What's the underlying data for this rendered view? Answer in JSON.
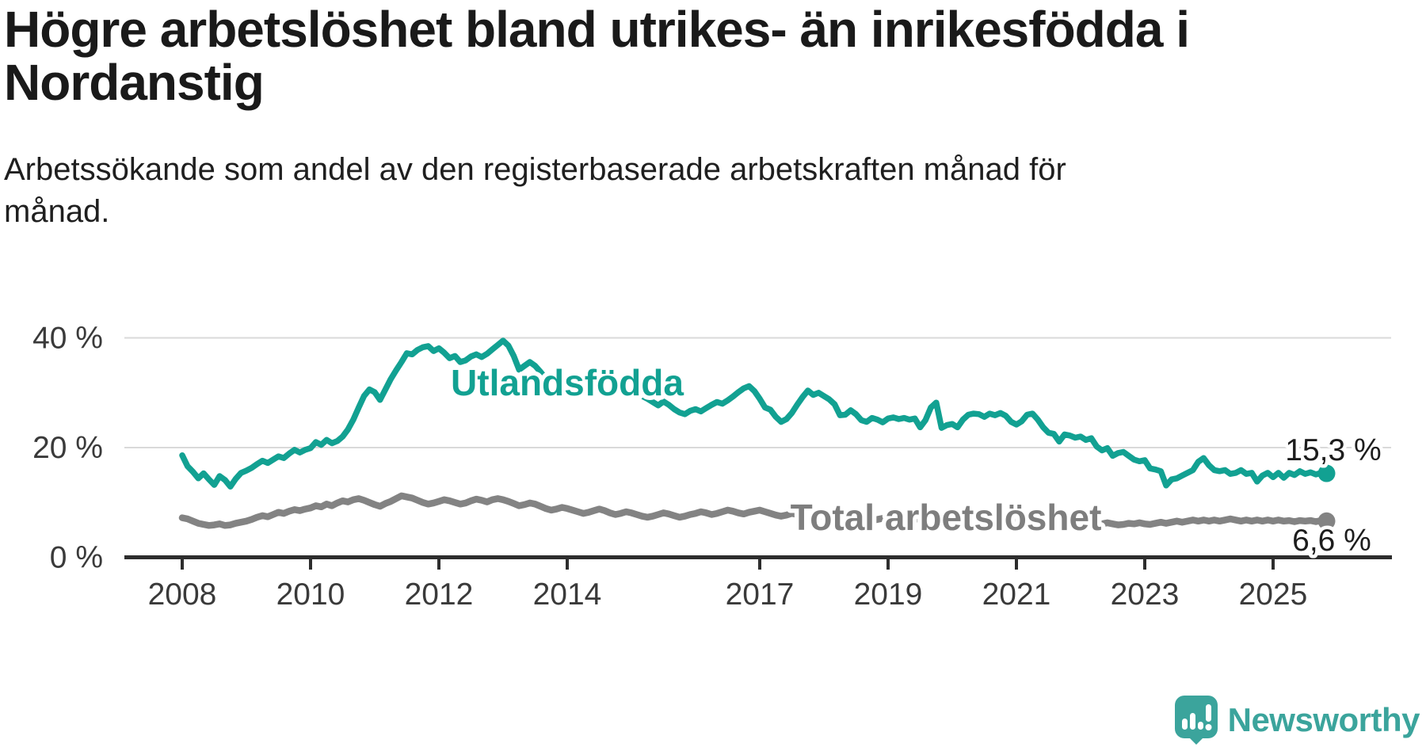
{
  "branding": {
    "name": "Newsworthy"
  },
  "chart_data": {
    "type": "line",
    "title": "Högre arbetslöshet bland utrikes- än inrikesfödda i Nordanstig",
    "subtitle": "Arbetssökande som andel av den registerbaserade arbetskraften månad för månad.",
    "x_unit": "month",
    "x_start": "2008-01",
    "x_end": "2025-11",
    "ylim": [
      0,
      43
    ],
    "grid": "horizontal-only",
    "legend_position": "inline-labels",
    "y_ticks": [
      {
        "label": "0 %",
        "value": 0
      },
      {
        "label": "20 %",
        "value": 20
      },
      {
        "label": "40 %",
        "value": 40
      }
    ],
    "x_ticks": [
      {
        "label": "2008",
        "year": 2008
      },
      {
        "label": "2010",
        "year": 2010
      },
      {
        "label": "2012",
        "year": 2012
      },
      {
        "label": "2014",
        "year": 2014
      },
      {
        "label": "2017",
        "year": 2017
      },
      {
        "label": "2019",
        "year": 2019
      },
      {
        "label": "2021",
        "year": 2021
      },
      {
        "label": "2023",
        "year": 2023
      },
      {
        "label": "2025",
        "year": 2025
      }
    ],
    "series": [
      {
        "name": "Utlandsfödda",
        "color": "#12a192",
        "line_width": 7.5,
        "end_value": 15.3,
        "end_label": "15,3 %",
        "values": [
          18.6,
          16.6,
          15.6,
          14.4,
          15.3,
          14.2,
          13.2,
          14.8,
          14.1,
          12.9,
          14.3,
          15.4,
          15.8,
          16.3,
          17.0,
          17.6,
          17.2,
          17.8,
          18.4,
          18.1,
          18.9,
          19.6,
          19.1,
          19.6,
          19.9,
          21.0,
          20.5,
          21.4,
          20.8,
          21.2,
          22.0,
          23.3,
          25.1,
          27.3,
          29.4,
          30.6,
          30.1,
          28.7,
          30.6,
          32.5,
          34.1,
          35.6,
          37.2,
          37.0,
          37.8,
          38.3,
          38.5,
          37.6,
          38.1,
          37.3,
          36.3,
          36.7,
          35.6,
          35.9,
          36.6,
          37.0,
          36.5,
          37.1,
          37.9,
          38.7,
          39.5,
          38.6,
          36.7,
          34.2,
          34.9,
          35.6,
          34.9,
          33.8,
          32.6,
          31.8,
          31.2,
          30.8,
          30.4,
          30.0,
          29.8,
          30.2,
          30.6,
          30.9,
          30.5,
          30.1,
          29.8,
          30.0,
          30.4,
          30.7,
          30.3,
          29.8,
          29.4,
          28.9,
          28.3,
          27.7,
          28.4,
          27.8,
          27.0,
          26.4,
          26.1,
          26.7,
          27.0,
          26.6,
          27.2,
          27.8,
          28.3,
          28.0,
          28.6,
          29.3,
          30.1,
          30.8,
          31.2,
          30.3,
          28.9,
          27.3,
          26.9,
          25.6,
          24.7,
          25.2,
          26.3,
          27.8,
          29.2,
          30.4,
          29.6,
          30.0,
          29.4,
          28.8,
          27.9,
          25.9,
          26.0,
          26.8,
          26.1,
          25.0,
          24.7,
          25.4,
          25.1,
          24.6,
          25.3,
          25.5,
          25.2,
          25.4,
          25.1,
          25.3,
          23.7,
          25.0,
          27.3,
          28.2,
          23.6,
          24.1,
          24.3,
          23.7,
          25.1,
          26.0,
          26.2,
          26.1,
          25.6,
          26.2,
          25.9,
          26.3,
          25.8,
          24.7,
          24.2,
          24.8,
          26.0,
          26.2,
          25.1,
          23.7,
          22.7,
          22.5,
          21.1,
          22.4,
          22.2,
          21.8,
          22.0,
          21.4,
          21.7,
          20.2,
          19.5,
          19.9,
          18.5,
          19.0,
          19.2,
          18.5,
          17.8,
          17.5,
          17.7,
          16.2,
          16.0,
          15.7,
          13.1,
          14.2,
          14.4,
          14.9,
          15.4,
          15.9,
          17.4,
          18.1,
          16.8,
          15.9,
          15.7,
          15.9,
          15.2,
          15.4,
          15.9,
          15.2,
          15.4,
          13.8,
          14.9,
          15.4,
          14.6,
          15.4,
          14.5,
          15.4,
          15.0,
          15.7,
          15.2,
          15.5,
          15.1,
          15.4,
          15.3
        ]
      },
      {
        "name": "Total arbetslöshet",
        "color": "#838383",
        "line_width": 8.5,
        "end_value": 6.6,
        "end_label": "6,6 %",
        "values": [
          7.2,
          7.0,
          6.6,
          6.2,
          6.0,
          5.8,
          5.9,
          6.1,
          5.8,
          5.9,
          6.2,
          6.4,
          6.6,
          6.9,
          7.3,
          7.6,
          7.4,
          7.8,
          8.2,
          8.0,
          8.4,
          8.7,
          8.5,
          8.8,
          9.0,
          9.4,
          9.2,
          9.7,
          9.4,
          9.9,
          10.3,
          10.1,
          10.5,
          10.7,
          10.4,
          10.0,
          9.6,
          9.3,
          9.8,
          10.2,
          10.7,
          11.2,
          11.0,
          10.8,
          10.4,
          10.0,
          9.7,
          9.9,
          10.2,
          10.5,
          10.3,
          10.0,
          9.7,
          9.9,
          10.3,
          10.6,
          10.4,
          10.1,
          10.5,
          10.7,
          10.5,
          10.2,
          9.8,
          9.4,
          9.6,
          9.9,
          9.7,
          9.3,
          8.9,
          8.6,
          8.8,
          9.1,
          8.9,
          8.6,
          8.3,
          8.0,
          8.2,
          8.5,
          8.8,
          8.5,
          8.1,
          7.8,
          8.0,
          8.3,
          8.1,
          7.8,
          7.5,
          7.3,
          7.5,
          7.8,
          8.1,
          7.9,
          7.6,
          7.3,
          7.5,
          7.8,
          8.0,
          8.3,
          8.1,
          7.8,
          8.0,
          8.3,
          8.6,
          8.4,
          8.1,
          7.9,
          8.2,
          8.4,
          8.6,
          8.3,
          8.0,
          7.7,
          7.5,
          7.7,
          8.0,
          7.8,
          7.5,
          7.2,
          7.4,
          7.6,
          7.4,
          7.1,
          6.9,
          6.7,
          6.9,
          7.1,
          7.4,
          7.2,
          6.9,
          6.7,
          6.9,
          7.1,
          7.0,
          6.8,
          6.6,
          6.5,
          6.7,
          6.9,
          7.1,
          6.9,
          6.7,
          6.5,
          6.7,
          6.9,
          7.1,
          7.0,
          7.4,
          7.8,
          7.6,
          7.4,
          7.2,
          7.4,
          7.2,
          7.0,
          6.8,
          6.9,
          7.1,
          7.0,
          6.8,
          6.6,
          6.8,
          7.0,
          6.8,
          6.6,
          6.4,
          6.2,
          6.4,
          6.6,
          6.4,
          6.2,
          6.1,
          5.9,
          6.1,
          6.3,
          6.1,
          5.9,
          6.0,
          6.2,
          6.1,
          6.3,
          6.1,
          6.0,
          6.2,
          6.4,
          6.2,
          6.4,
          6.6,
          6.4,
          6.6,
          6.8,
          6.6,
          6.8,
          6.6,
          6.8,
          6.6,
          6.8,
          7.0,
          6.8,
          6.6,
          6.8,
          6.6,
          6.8,
          6.6,
          6.8,
          6.6,
          6.8,
          6.6,
          6.7,
          6.5,
          6.7,
          6.6,
          6.7,
          6.5,
          6.7,
          6.6
        ]
      }
    ]
  }
}
